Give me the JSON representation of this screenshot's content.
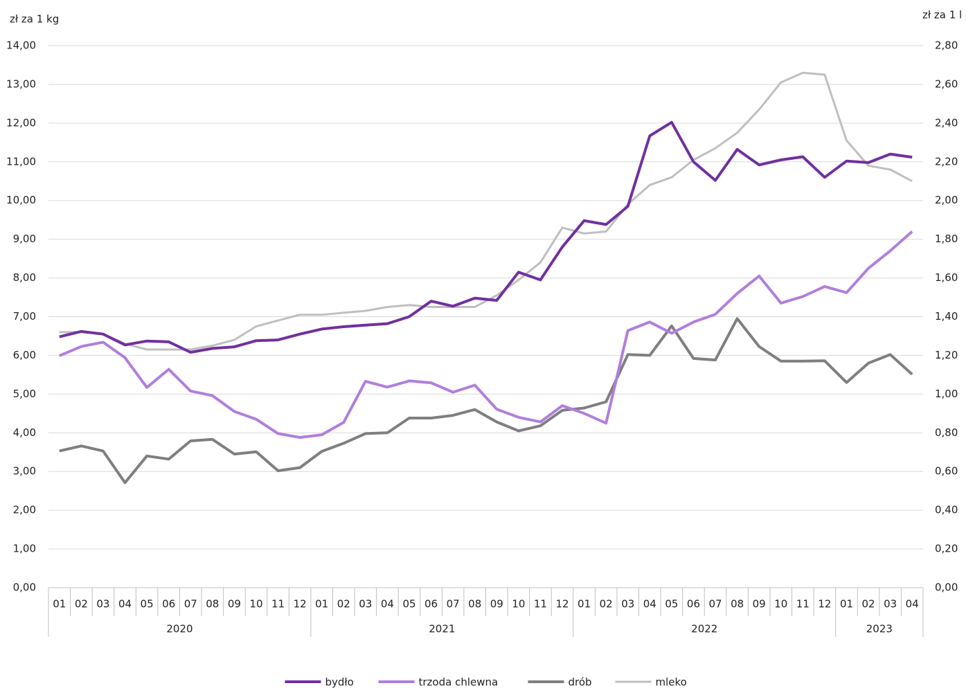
{
  "chart_data": {
    "type": "line",
    "y_label": "zł za 1 kg",
    "y2_label": "zł za 1 l",
    "categories": [
      "01",
      "02",
      "03",
      "04",
      "05",
      "06",
      "07",
      "08",
      "09",
      "10",
      "11",
      "12",
      "01",
      "02",
      "03",
      "04",
      "05",
      "06",
      "07",
      "08",
      "09",
      "10",
      "11",
      "12",
      "01",
      "02",
      "03",
      "04",
      "05",
      "06",
      "07",
      "08",
      "09",
      "10",
      "11",
      "12",
      "01",
      "02",
      "03",
      "04"
    ],
    "years": [
      "2020",
      "2021",
      "2022",
      "2023"
    ],
    "ylim": [
      0,
      14
    ],
    "yticks": [
      {
        "value": 0,
        "label": "0,00"
      },
      {
        "value": 1,
        "label": "1,00"
      },
      {
        "value": 2,
        "label": "2,00"
      },
      {
        "value": 3,
        "label": "3,00"
      },
      {
        "value": 4,
        "label": "4,00"
      },
      {
        "value": 5,
        "label": "5,00"
      },
      {
        "value": 6,
        "label": "6,00"
      },
      {
        "value": 7,
        "label": "7,00"
      },
      {
        "value": 8,
        "label": "8,00"
      },
      {
        "value": 9,
        "label": "9,00"
      },
      {
        "value": 10,
        "label": "10,00"
      },
      {
        "value": 11,
        "label": "11,00"
      },
      {
        "value": 12,
        "label": "12,00"
      },
      {
        "value": 13,
        "label": "13,00"
      },
      {
        "value": 14,
        "label": "14,00"
      }
    ],
    "y2lim": [
      0,
      2.8
    ],
    "y2ticks": [
      {
        "value": 0,
        "label": "0,00"
      },
      {
        "value": 0.2,
        "label": "0,20"
      },
      {
        "value": 0.4,
        "label": "0,40"
      },
      {
        "value": 0.6,
        "label": "0,60"
      },
      {
        "value": 0.8,
        "label": "0,80"
      },
      {
        "value": 1,
        "label": "1,00"
      },
      {
        "value": 1.2,
        "label": "1,20"
      },
      {
        "value": 1.4,
        "label": "1,40"
      },
      {
        "value": 1.6,
        "label": "1,60"
      },
      {
        "value": 1.8,
        "label": "1,80"
      },
      {
        "value": 2,
        "label": "2,00"
      },
      {
        "value": 2.2,
        "label": "2,20"
      },
      {
        "value": 2.4,
        "label": "2,40"
      },
      {
        "value": 2.6,
        "label": "2,60"
      },
      {
        "value": 2.8,
        "label": "2,80"
      }
    ],
    "grid": true,
    "legend": "bottom",
    "series": [
      {
        "name": "bydło",
        "color": "#7030a0",
        "values": [
          6.48,
          6.62,
          6.55,
          6.27,
          6.37,
          6.35,
          6.08,
          6.18,
          6.22,
          6.38,
          6.4,
          6.55,
          6.68,
          6.74,
          6.78,
          6.82,
          7.0,
          7.4,
          7.27,
          7.48,
          7.42,
          8.15,
          7.95,
          8.8,
          9.48,
          9.38,
          9.85,
          11.67,
          12.02,
          11.0,
          10.52,
          11.32,
          10.92,
          11.05,
          11.13,
          10.6,
          11.02,
          10.98,
          11.2,
          11.12
        ]
      },
      {
        "name": "trzoda chlewna",
        "color": "#b07fdc",
        "values": [
          5.99,
          6.23,
          6.34,
          5.94,
          5.17,
          5.64,
          5.08,
          4.96,
          4.55,
          4.35,
          3.98,
          3.88,
          3.95,
          4.27,
          5.33,
          5.18,
          5.34,
          5.29,
          5.05,
          5.23,
          4.61,
          4.4,
          4.28,
          4.7,
          4.5,
          4.25,
          6.64,
          6.86,
          6.57,
          6.86,
          7.06,
          7.6,
          8.05,
          7.35,
          7.52,
          7.78,
          7.62,
          8.25,
          8.7,
          9.2
        ]
      },
      {
        "name": "drób",
        "color": "#7f7f7f",
        "values": [
          3.53,
          3.66,
          3.53,
          2.71,
          3.4,
          3.32,
          3.79,
          3.83,
          3.45,
          3.51,
          3.02,
          3.1,
          3.52,
          3.73,
          3.98,
          4.0,
          4.38,
          4.38,
          4.45,
          4.6,
          4.28,
          4.05,
          4.18,
          4.58,
          4.64,
          4.8,
          6.02,
          6.0,
          6.76,
          5.92,
          5.88,
          6.95,
          6.23,
          5.85,
          5.85,
          5.86,
          5.3,
          5.8,
          6.02,
          5.51
        ]
      },
      {
        "name": "mleko",
        "color": "#bfbfbf",
        "axis": "y2",
        "values": [
          1.32,
          1.32,
          1.31,
          1.26,
          1.23,
          1.23,
          1.23,
          1.25,
          1.28,
          1.35,
          1.38,
          1.41,
          1.41,
          1.42,
          1.43,
          1.45,
          1.46,
          1.45,
          1.45,
          1.45,
          1.51,
          1.59,
          1.68,
          1.86,
          1.83,
          1.84,
          1.98,
          2.08,
          2.12,
          2.21,
          2.27,
          2.35,
          2.47,
          2.61,
          2.66,
          2.65,
          2.31,
          2.18,
          2.16,
          2.1
        ]
      }
    ]
  }
}
